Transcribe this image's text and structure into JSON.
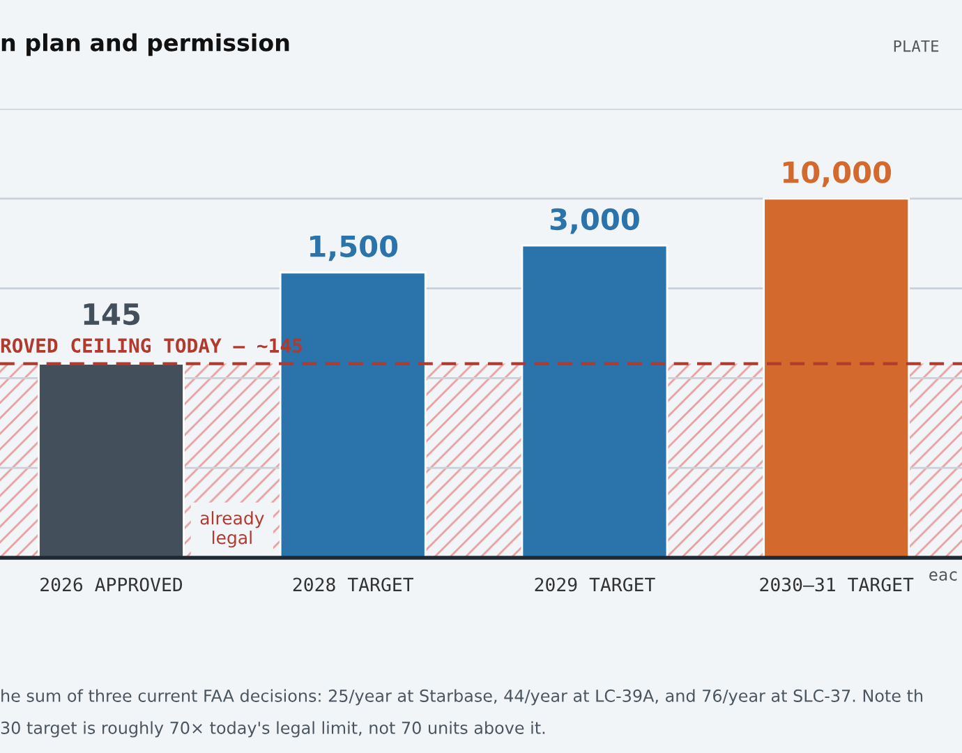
{
  "chart_data": {
    "type": "bar",
    "title": "n plan and permission",
    "subtitle": "PLATE",
    "categories": [
      "2026 APPROVED",
      "2028 TARGET",
      "2029 TARGET",
      "2030–31 TARGET"
    ],
    "values": [
      145,
      1500,
      3000,
      10000
    ],
    "value_labels": [
      "145",
      "1,500",
      "3,000",
      "10,000"
    ],
    "log": "y",
    "ylim": [
      1,
      100000
    ],
    "colors": [
      "#434f5b",
      "#2a73ab",
      "#2a73ab",
      "#d4692e"
    ],
    "tick_labels": "x",
    "grid": "y",
    "ref_lines": [
      {
        "axis": "y",
        "value": 145,
        "label": "ROVED CEILING TODAY — ~145",
        "color": "#b03a2e",
        "line_style": "dashed"
      }
    ],
    "bands": [
      {
        "axis": "y",
        "from": 1,
        "to": 145,
        "label": "already legal",
        "color": "#e8a0a0"
      }
    ],
    "annotations": [
      "eac",
      "he sum of three current FAA decisions: 25/year at Starbase, 44/year at LC-39A, and 76/year at SLC-37. Note th",
      "30 target is roughly 70× today's legal limit, not 70 units above it."
    ]
  }
}
